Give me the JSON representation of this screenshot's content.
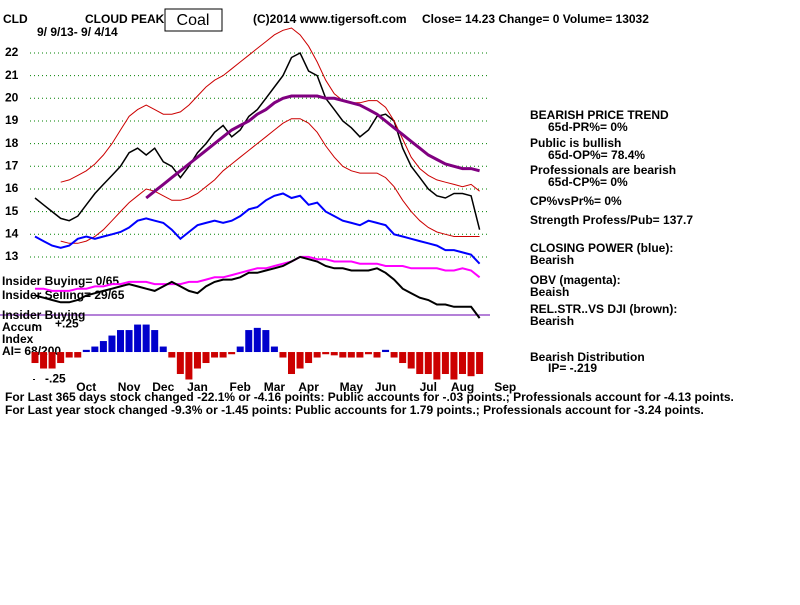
{
  "header": {
    "symbol": "CLD",
    "company": "CLOUD PEAK",
    "sector": "Coal",
    "copyright": "(C)2014 www.tigersoft.com",
    "quote": "Close=  14.23  Change= 0 Volume= 13032",
    "date_range": "9/ 9/13- 9/ 4/14"
  },
  "insider": {
    "buying": "Insider Buying= 0/65",
    "selling": "Insider Selling= 29/65",
    "label": "Insider Buying",
    "accum": "Accum",
    "index": "Index",
    "ai": "AI= 68/200"
  },
  "signals": [
    "BEARISH PRICE TREND",
    "65d-PR%= 0%",
    "Public is bullish",
    "65d-OP%= 78.4%",
    "Professionals are bearish",
    "65d-CP%= 0%",
    "CP%vsPr%=  0%",
    "Strength Profess/Pub= 137.7",
    "CLOSING POWER (blue):",
    "Bearish",
    "OBV (magenta):",
    "Beaish",
    "REL.STR..VS DJI (brown):",
    "Bearish",
    "Bearish Distribution",
    "IP= -.219"
  ],
  "footer": [
    "For Last 365 days stock changed -22.1% or -4.16 points:  Public accounts for -.03 points.;  Professionals account for -4.13 points.",
    "For Last year stock changed -9.3% or -1.45 points:  Public accounts for  1.79 points.;  Professionals account for -3.24 points."
  ],
  "chart_data": {
    "type": "line",
    "categories": [
      null,
      null,
      null,
      null,
      null,
      null,
      "Oct",
      null,
      null,
      null,
      null,
      "Nov",
      null,
      null,
      null,
      "Dec",
      null,
      null,
      null,
      "Jan",
      null,
      null,
      null,
      null,
      "Feb",
      null,
      null,
      null,
      "Mar",
      null,
      null,
      null,
      "Apr",
      null,
      null,
      null,
      null,
      "May",
      null,
      null,
      null,
      "Jun",
      null,
      null,
      null,
      null,
      "Jul",
      null,
      null,
      null,
      "Aug",
      null,
      null,
      null,
      null,
      "Sep"
    ],
    "ylim": [
      7.35,
      23.3
    ],
    "yticks": [
      13,
      14,
      15,
      16,
      17,
      18,
      19,
      20,
      21,
      22
    ],
    "grid": true,
    "grid_color": "#008000",
    "y2lim": [
      -0.3,
      2.99
    ],
    "y2ticks": [
      {
        "value": 0.25,
        "label": "+.25"
      },
      {
        "value": -0.25,
        "label": "-.25"
      }
    ],
    "series": [
      {
        "color": "#000000",
        "width": 1.5,
        "values": [
          15.6,
          15.3,
          15.0,
          14.7,
          14.6,
          14.8,
          15.3,
          15.8,
          16.2,
          16.6,
          17.0,
          17.6,
          17.8,
          17.5,
          17.8,
          17.2,
          17.0,
          16.5,
          17.0,
          17.6,
          18.0,
          18.5,
          18.8,
          18.3,
          18.6,
          19.2,
          19.5,
          20.0,
          20.5,
          21.0,
          21.8,
          22.0,
          21.2,
          21.0,
          20.0,
          19.5,
          19.0,
          18.7,
          18.3,
          18.6,
          19.2,
          19.3,
          19.0,
          17.8,
          17.0,
          16.5,
          16.0,
          15.7,
          15.6,
          15.8,
          15.8,
          15.7,
          14.2,
          null,
          null,
          null
        ]
      },
      {
        "color": "#cc0000",
        "width": 1,
        "values": [
          null,
          null,
          null,
          16.3,
          16.4,
          16.6,
          16.8,
          17.1,
          17.5,
          18.0,
          18.6,
          19.2,
          19.5,
          19.7,
          19.5,
          19.3,
          19.3,
          19.4,
          19.7,
          20.1,
          20.5,
          20.8,
          21.0,
          21.3,
          21.6,
          21.9,
          22.2,
          22.5,
          22.8,
          23.0,
          23.1,
          22.8,
          22.3,
          21.6,
          20.8,
          20.2,
          19.9,
          19.8,
          19.8,
          19.9,
          19.9,
          19.6,
          19.0,
          18.2,
          17.4,
          16.9,
          16.6,
          16.4,
          16.3,
          16.2,
          16.1,
          16.2,
          15.9,
          null,
          null,
          null
        ]
      },
      {
        "color": "#cc0000",
        "width": 1,
        "values": [
          null,
          null,
          null,
          13.7,
          13.6,
          13.6,
          13.7,
          13.9,
          14.2,
          14.6,
          15.0,
          15.4,
          15.7,
          16.0,
          15.9,
          15.7,
          15.5,
          15.5,
          15.6,
          15.8,
          16.1,
          16.4,
          16.8,
          17.1,
          17.4,
          17.7,
          18.0,
          18.3,
          18.6,
          18.9,
          19.1,
          19.1,
          18.9,
          18.5,
          17.9,
          17.4,
          17.0,
          16.8,
          16.7,
          16.7,
          16.7,
          16.5,
          16.1,
          15.5,
          15.0,
          14.6,
          14.3,
          14.1,
          14.0,
          13.9,
          13.9,
          13.9,
          13.9,
          null,
          null,
          null
        ]
      },
      {
        "color": "#800080",
        "width": 3,
        "values": [
          null,
          null,
          null,
          null,
          null,
          null,
          null,
          null,
          null,
          null,
          null,
          null,
          null,
          15.6,
          15.9,
          16.2,
          16.5,
          16.8,
          17.1,
          17.4,
          17.7,
          18.0,
          18.3,
          18.6,
          18.8,
          19.0,
          19.3,
          19.5,
          19.8,
          20.0,
          20.1,
          20.1,
          20.1,
          20.1,
          20.0,
          20.0,
          19.9,
          19.8,
          19.7,
          19.5,
          19.3,
          19.0,
          18.7,
          18.4,
          18.1,
          17.8,
          17.5,
          17.3,
          17.1,
          17.0,
          16.9,
          16.9,
          16.8,
          null,
          null,
          null
        ]
      },
      {
        "color": "#0000ff",
        "width": 2,
        "values": [
          13.9,
          13.7,
          13.5,
          13.4,
          13.5,
          13.8,
          13.9,
          13.8,
          13.9,
          14.0,
          14.1,
          14.3,
          14.6,
          14.7,
          14.6,
          14.5,
          14.2,
          13.8,
          14.1,
          14.4,
          14.5,
          14.6,
          14.5,
          14.6,
          14.8,
          15.1,
          15.2,
          15.5,
          15.7,
          15.8,
          15.6,
          15.7,
          15.3,
          15.4,
          15.0,
          14.8,
          14.6,
          14.5,
          14.4,
          14.6,
          14.5,
          14.4,
          14.0,
          13.9,
          13.8,
          13.7,
          13.6,
          13.5,
          13.3,
          13.3,
          13.2,
          13.1,
          12.7,
          null,
          null,
          null
        ]
      },
      {
        "color": "#ff00ff",
        "width": 2,
        "values": [
          11.6,
          11.6,
          11.5,
          11.5,
          11.5,
          11.6,
          11.6,
          11.7,
          11.7,
          11.8,
          11.8,
          11.9,
          11.9,
          11.9,
          11.8,
          11.8,
          11.8,
          11.8,
          11.9,
          11.9,
          12.0,
          12.1,
          12.1,
          12.2,
          12.3,
          12.4,
          12.5,
          12.5,
          12.6,
          12.7,
          12.8,
          13.0,
          13.0,
          12.9,
          12.9,
          12.8,
          12.8,
          12.8,
          12.7,
          12.7,
          12.7,
          12.6,
          12.6,
          12.6,
          12.5,
          12.5,
          12.5,
          12.5,
          12.4,
          12.4,
          12.5,
          12.4,
          12.1,
          null,
          null,
          null
        ]
      },
      {
        "color": "#000000",
        "width": 2,
        "values": [
          11.3,
          11.2,
          11.1,
          11.0,
          11.0,
          11.1,
          11.3,
          11.4,
          11.5,
          11.6,
          11.7,
          11.8,
          11.7,
          11.6,
          11.5,
          11.7,
          11.9,
          11.7,
          11.5,
          11.4,
          11.7,
          11.9,
          12.0,
          12.0,
          12.1,
          12.3,
          12.3,
          12.4,
          12.5,
          12.6,
          12.8,
          13.0,
          12.9,
          12.8,
          12.6,
          12.5,
          12.5,
          12.4,
          12.4,
          12.4,
          12.5,
          12.3,
          12.0,
          11.6,
          11.4,
          11.2,
          11.1,
          10.9,
          10.9,
          10.8,
          10.8,
          10.8,
          10.3,
          null,
          null,
          null
        ]
      },
      {
        "axis": "y2",
        "kind": "bars",
        "color": "#cc0000",
        "positive_color": "#0000cc",
        "values": [
          -0.1,
          -0.15,
          -0.15,
          -0.1,
          -0.05,
          -0.05,
          0.02,
          0.05,
          0.1,
          0.15,
          0.2,
          0.2,
          0.25,
          0.25,
          0.2,
          0.05,
          -0.05,
          -0.2,
          -0.25,
          -0.15,
          -0.1,
          -0.05,
          -0.05,
          -0.02,
          0.05,
          0.2,
          0.22,
          0.2,
          0.05,
          -0.05,
          -0.2,
          -0.15,
          -0.1,
          -0.05,
          -0.02,
          -0.03,
          -0.05,
          -0.05,
          -0.05,
          -0.02,
          -0.05,
          0.02,
          -0.05,
          -0.1,
          -0.15,
          -0.2,
          -0.2,
          -0.25,
          -0.2,
          -0.25,
          -0.2,
          -0.22,
          -0.2,
          null,
          null,
          null
        ]
      }
    ]
  }
}
